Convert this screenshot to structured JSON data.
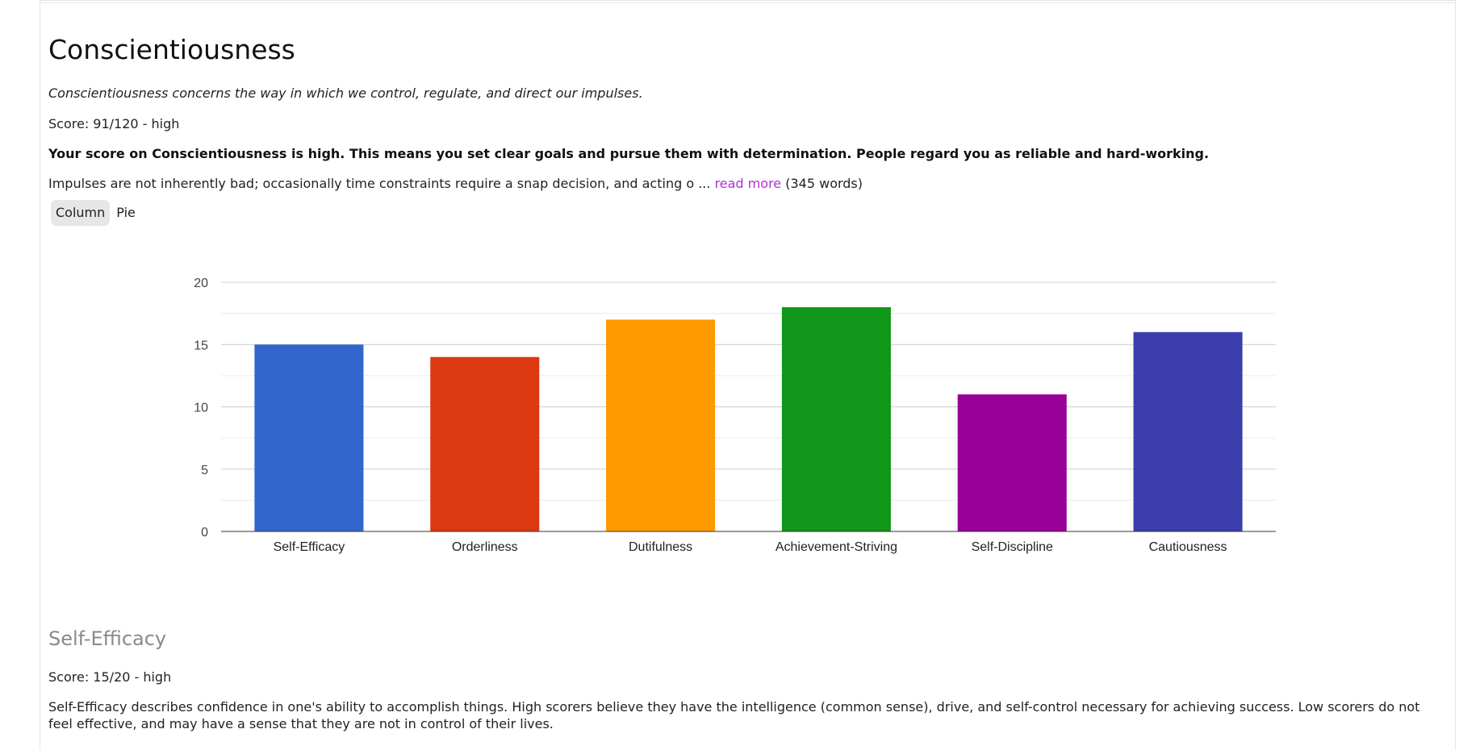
{
  "section": {
    "title": "Conscientiousness",
    "description": "Conscientiousness concerns the way in which we control, regulate, and direct our impulses.",
    "score": "Score: 91/120 - high",
    "summary": "Your score on Conscientiousness is high. This means you set clear goals and pursue them with determination. People regard you as reliable and hard-working.",
    "excerpt": "Impulses are not inherently bad; occasionally time constraints require a snap decision, and acting o",
    "ellipsis": "...",
    "read_more": "read more",
    "word_count": "(345 words)"
  },
  "tabs": [
    {
      "label": "Column",
      "active": true
    },
    {
      "label": "Pie",
      "active": false
    }
  ],
  "chart_data": {
    "type": "bar",
    "categories": [
      "Self-Efficacy",
      "Orderliness",
      "Dutifulness",
      "Achievement-Striving",
      "Self-Discipline",
      "Cautiousness"
    ],
    "values": [
      15,
      14,
      17,
      18,
      11,
      16
    ],
    "colors": [
      "#3366cc",
      "#dc3912",
      "#ff9900",
      "#109618",
      "#990099",
      "#3b3eac"
    ],
    "ylim": [
      0,
      20
    ],
    "yticks": [
      0,
      5,
      10,
      15,
      20
    ],
    "grid": true,
    "legend": "none"
  },
  "facet": {
    "title": "Self-Efficacy",
    "score": "Score: 15/20 - high",
    "description": "Self-Efficacy describes confidence in one's ability to accomplish things. High scorers believe they have the intelligence (common sense), drive, and self-control necessary for achieving success. Low scorers do not feel effective, and may have a sense that they are not in control of their lives."
  }
}
